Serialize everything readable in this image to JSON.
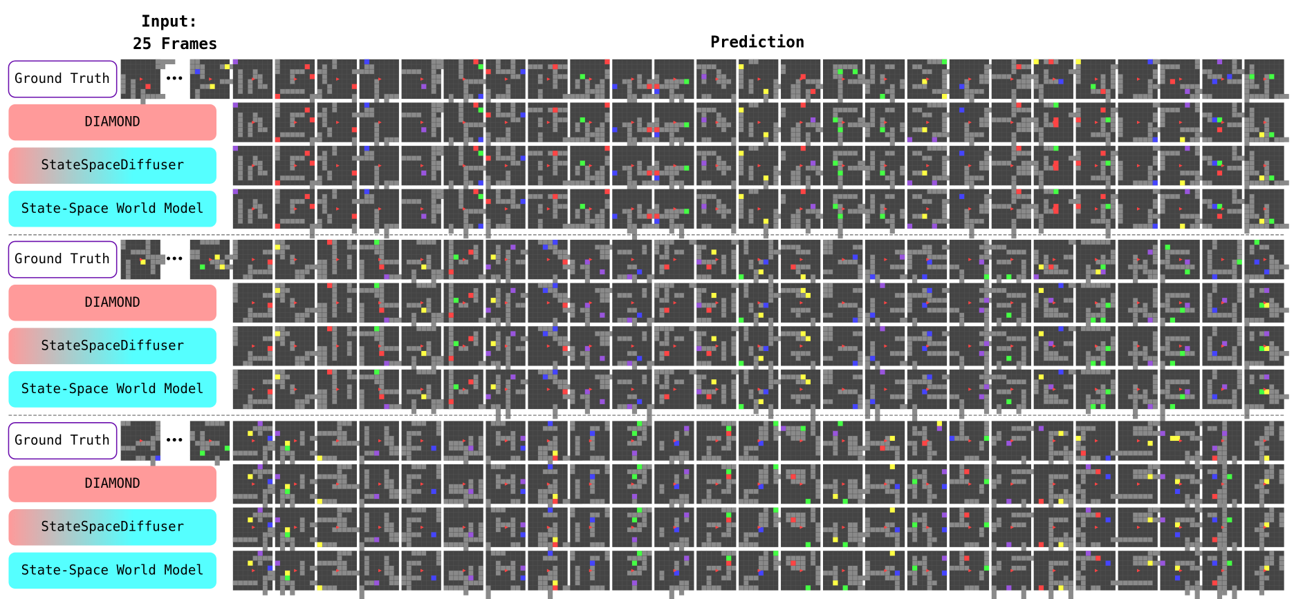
{
  "header": {
    "input_line1": "Input:",
    "input_line2": "25 Frames",
    "prediction": "Prediction"
  },
  "groups": [
    {
      "ellipsis": "•••",
      "rows": [
        {
          "label": "Ground Truth"
        },
        {
          "label": "DIAMOND"
        },
        {
          "label": "StateSpaceDiffuser"
        },
        {
          "label": "State-Space World Model"
        }
      ]
    },
    {
      "ellipsis": "•••",
      "rows": [
        {
          "label": "Ground Truth"
        },
        {
          "label": "DIAMOND"
        },
        {
          "label": "StateSpaceDiffuser"
        },
        {
          "label": "State-Space World Model"
        }
      ]
    },
    {
      "ellipsis": "•••",
      "rows": [
        {
          "label": "Ground Truth"
        },
        {
          "label": "DIAMOND"
        },
        {
          "label": "StateSpaceDiffuser"
        },
        {
          "label": "State-Space World Model"
        }
      ]
    }
  ]
}
